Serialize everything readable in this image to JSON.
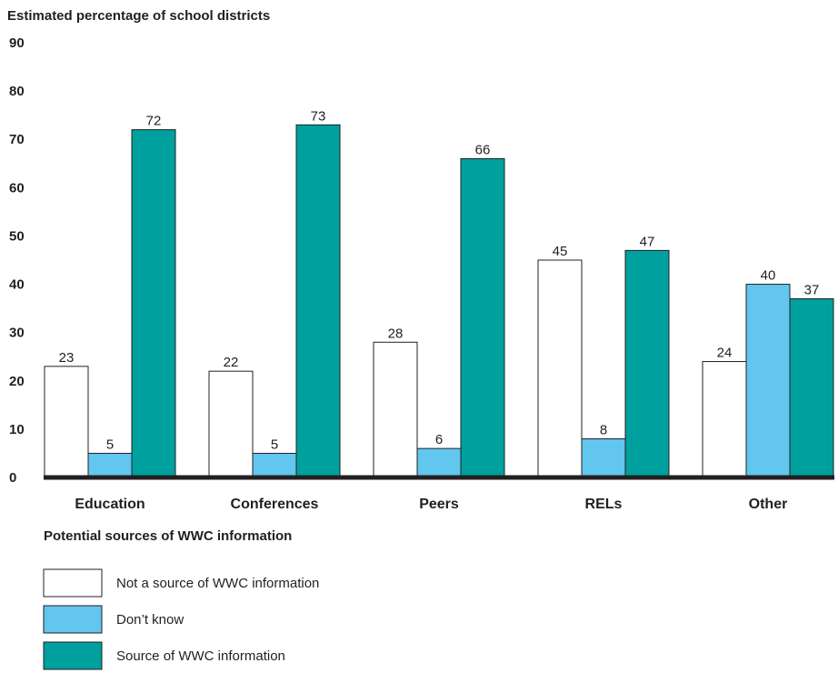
{
  "chart_data": {
    "type": "bar",
    "ylabel": "Estimated percentage of school districts",
    "xlabel": "Potential sources of WWC information",
    "ylim": [
      0,
      90
    ],
    "yticks": [
      0,
      10,
      20,
      30,
      40,
      50,
      60,
      70,
      80,
      90
    ],
    "grid": false,
    "categories": [
      "Education",
      "Conferences",
      "Peers",
      "RELs",
      "Other"
    ],
    "series": [
      {
        "name": "Not a source of WWC information",
        "color": "#ffffff",
        "values": [
          23,
          22,
          28,
          45,
          24
        ]
      },
      {
        "name": "Don’t know",
        "color": "#62c6ee",
        "values": [
          5,
          5,
          6,
          8,
          40
        ]
      },
      {
        "name": "Source of WWC information",
        "color": "#00a09e",
        "values": [
          72,
          73,
          66,
          47,
          37
        ]
      }
    ],
    "legend_position": "bottom-left"
  }
}
